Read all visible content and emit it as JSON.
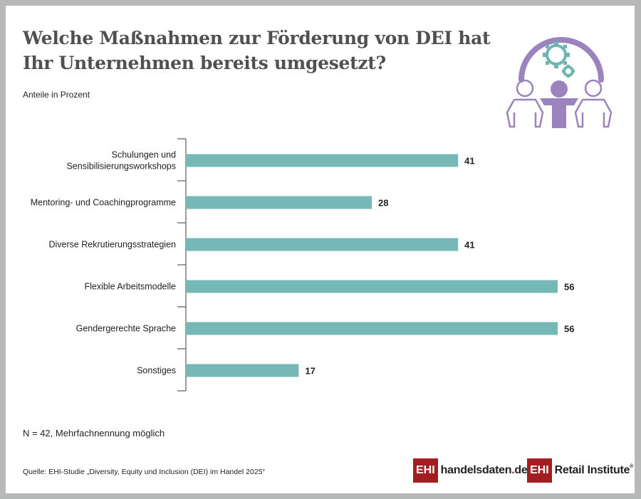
{
  "title_line1": "Welche Maßnahmen zur Förderung von DEI hat",
  "title_line2": "Ihr Unternehmen bereits umgesetzt?",
  "subtitle": "Anteile in Prozent",
  "note": "N = 42, Mehrfachnennung möglich",
  "source": "Quelle: EHI-Studie „Diversity, Equity und Inclusion (DEI) im Handel 2025“",
  "icon": "team-meeting-gears-icon",
  "logos": {
    "handelsdaten": {
      "box": "EHI",
      "text_a": "handelsdaten",
      "dot": ".",
      "text_b": "de"
    },
    "retail": {
      "box": "EHI",
      "text": "Retail Institute",
      "reg": "®"
    }
  },
  "colors": {
    "bar": "#76b8b6",
    "icon_purple": "#9b83bd",
    "icon_teal": "#6cb5b1",
    "brand_red": "#a31e22"
  },
  "chart_data": {
    "type": "bar",
    "orientation": "horizontal",
    "title": "Welche Maßnahmen zur Förderung von DEI hat Ihr Unternehmen bereits umgesetzt?",
    "subtitle": "Anteile in Prozent",
    "categories": [
      [
        "Schulungen und",
        "Sensibilisierungsworkshops"
      ],
      [
        "Mentoring- und Coachingprogramme"
      ],
      [
        "Diverse Rekrutierungsstrategien"
      ],
      [
        "Flexible Arbeitsmodelle"
      ],
      [
        "Gendergerechte Sprache"
      ],
      [
        "Sonstiges"
      ]
    ],
    "values": [
      41,
      28,
      41,
      56,
      56,
      17
    ],
    "xlabel": "",
    "ylabel": "",
    "xlim": [
      0,
      56
    ],
    "grid": false,
    "legend": "none"
  }
}
